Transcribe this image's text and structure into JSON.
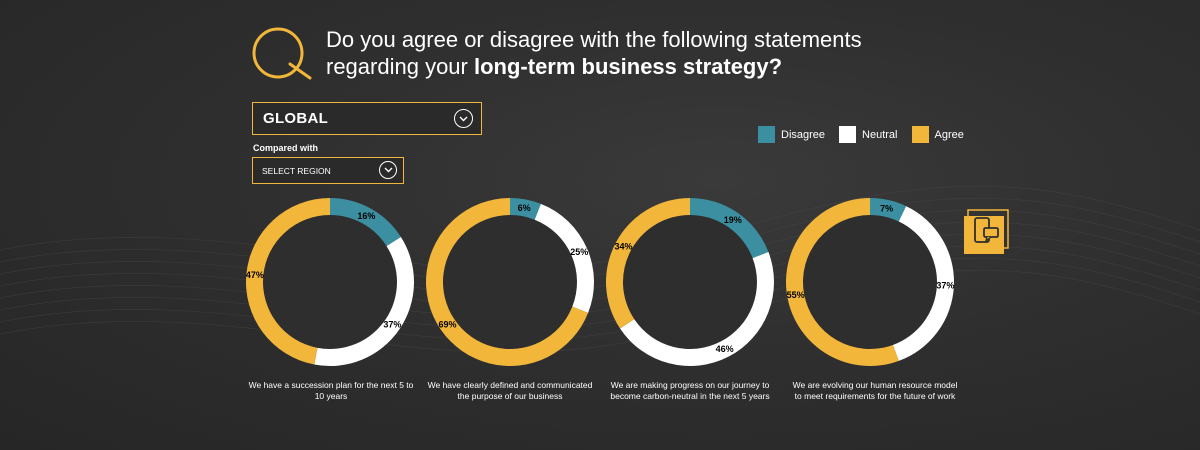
{
  "header": {
    "question_line1": "Do you agree or disagree with the following statements",
    "question_line2_prefix": "regarding your ",
    "question_line2_bold": "long-term business strategy?"
  },
  "filters": {
    "global_value": "GLOBAL",
    "compared_label": "Compared with",
    "region_value": "SELECT REGION"
  },
  "colors": {
    "disagree": "#3b8fa0",
    "neutral": "#ffffff",
    "agree": "#f2b63a",
    "hole": "#2e2e2e"
  },
  "legend": [
    {
      "label": "Disagree",
      "color": "#3b8fa0"
    },
    {
      "label": "Neutral",
      "color": "#ffffff"
    },
    {
      "label": "Agree",
      "color": "#f2b63a"
    }
  ],
  "icons": {
    "logo": "q-logo-icon",
    "dropdown": "chevron-down-icon",
    "phone": "phone-chat-icon"
  },
  "chart_data": [
    {
      "type": "pie",
      "caption": "We have a succession plan for the next 5 to 10 years",
      "slices": [
        {
          "name": "Disagree",
          "value": 16,
          "label": "16%"
        },
        {
          "name": "Neutral",
          "value": 37,
          "label": "37%"
        },
        {
          "name": "Agree",
          "value": 47,
          "label": "47%"
        }
      ]
    },
    {
      "type": "pie",
      "caption": "We have clearly defined and communicated the purpose of our business",
      "slices": [
        {
          "name": "Disagree",
          "value": 6,
          "label": "6%"
        },
        {
          "name": "Neutral",
          "value": 25,
          "label": "25%"
        },
        {
          "name": "Agree",
          "value": 69,
          "label": "69%"
        }
      ]
    },
    {
      "type": "pie",
      "caption": "We are making progress on our journey to become carbon-neutral in the next 5 years",
      "slices": [
        {
          "name": "Disagree",
          "value": 19,
          "label": "19%"
        },
        {
          "name": "Neutral",
          "value": 46,
          "label": "46%"
        },
        {
          "name": "Agree",
          "value": 34,
          "label": "34%"
        }
      ]
    },
    {
      "type": "pie",
      "caption": "We are evolving our human resource model to meet requirements for the future of work",
      "slices": [
        {
          "name": "Disagree",
          "value": 7,
          "label": "7%"
        },
        {
          "name": "Neutral",
          "value": 37,
          "label": "37%"
        },
        {
          "name": "Agree",
          "value": 55,
          "label": "55%"
        }
      ]
    }
  ]
}
